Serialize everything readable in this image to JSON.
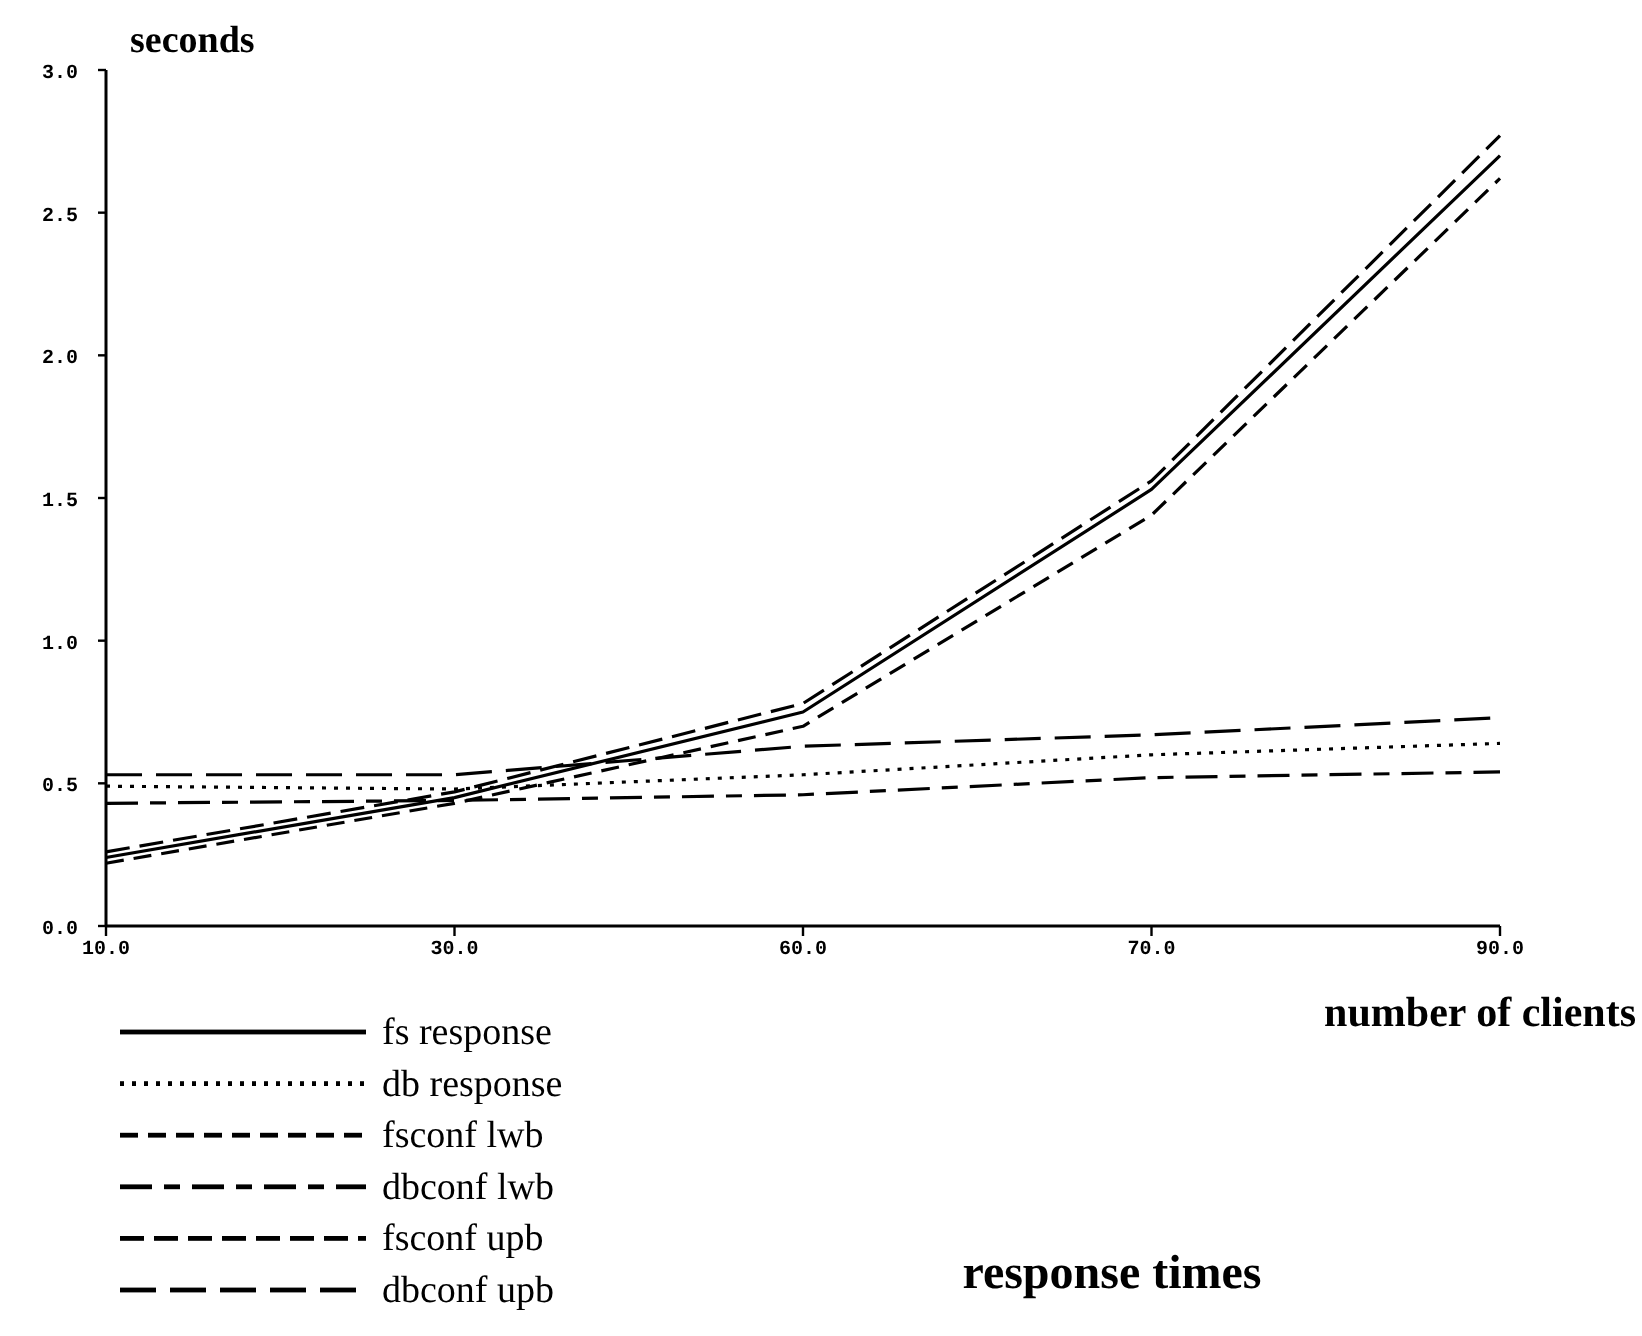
{
  "chart_data": {
    "type": "line",
    "title": "response times",
    "xlabel": "number of clients",
    "ylabel": "seconds",
    "categories": [
      "10.0",
      "30.0",
      "60.0",
      "70.0",
      "90.0"
    ],
    "series": [
      {
        "name": "fs  response",
        "color": "#000000",
        "line_style": "solid",
        "values": [
          0.24,
          0.45,
          0.75,
          1.53,
          2.7
        ]
      },
      {
        "name": "db  response",
        "color": "#000000",
        "line_style": "dotted",
        "values": [
          0.49,
          0.48,
          0.53,
          0.6,
          0.64
        ]
      },
      {
        "name": "fsconf lwb",
        "color": "#000000",
        "line_style": "dashed",
        "values": [
          0.22,
          0.43,
          0.7,
          1.44,
          2.62
        ]
      },
      {
        "name": "dbconf lwb",
        "color": "#000000",
        "line_style": "dashed",
        "values": [
          0.43,
          0.44,
          0.46,
          0.52,
          0.54
        ]
      },
      {
        "name": "fsconf upb",
        "color": "#000000",
        "line_style": "dashed",
        "values": [
          0.26,
          0.47,
          0.78,
          1.56,
          2.77
        ]
      },
      {
        "name": "dbconf upb",
        "color": "#000000",
        "line_style": "dashed",
        "values": [
          0.53,
          0.53,
          0.63,
          0.67,
          0.73
        ]
      }
    ],
    "ylim": [
      0,
      3
    ],
    "yticks": [
      {
        "value": 0,
        "label": "0.0"
      },
      {
        "value": 0.5,
        "label": "0.5"
      },
      {
        "value": 1,
        "label": "1.0"
      },
      {
        "value": 1.5,
        "label": "1.5"
      },
      {
        "value": 2,
        "label": "2.0"
      },
      {
        "value": 2.5,
        "label": "2.5"
      },
      {
        "value": 3,
        "label": "3.0"
      }
    ],
    "legend": "bottom left",
    "grid": false
  }
}
